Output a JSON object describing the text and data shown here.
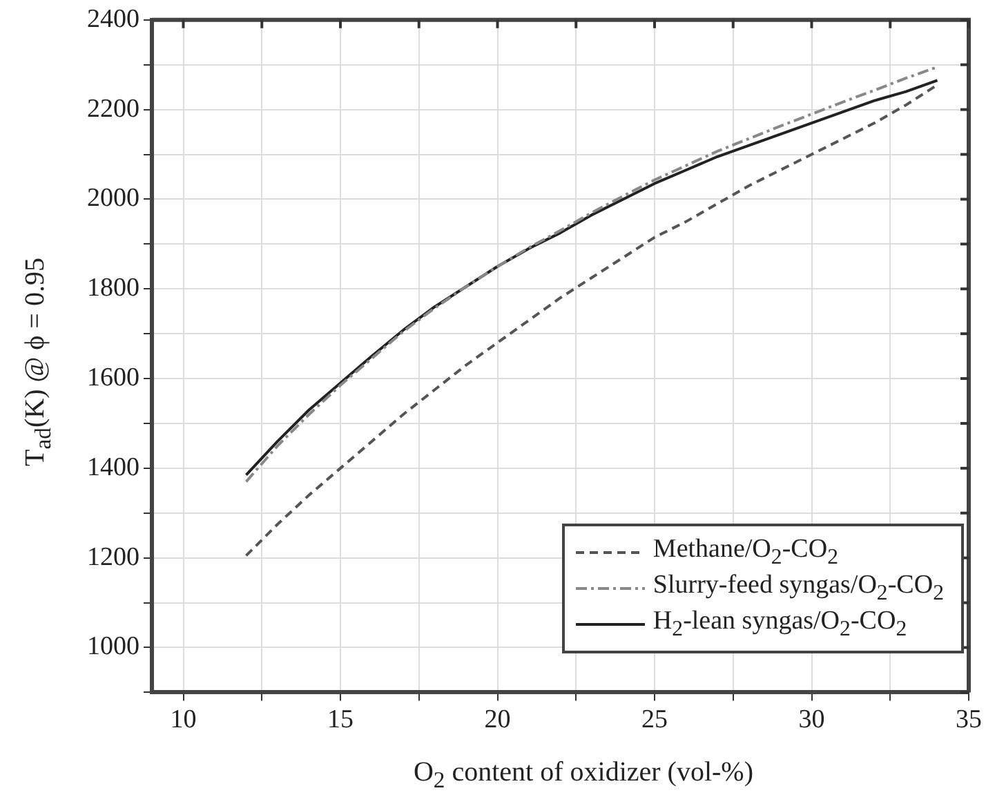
{
  "chart_data": {
    "type": "line",
    "xlabel": "O$_{2}$ content of oxidizer (vol-%)",
    "ylabel": "T$_{ad}$(K) @ ϕ = 0.95",
    "x": [
      12,
      13,
      14,
      15,
      16,
      17,
      18,
      19,
      20,
      21,
      22,
      23,
      24,
      25,
      26,
      27,
      28,
      29,
      30,
      31,
      32,
      33,
      34
    ],
    "series": [
      {
        "name": "Methane/O$_{2}$-CO$_{2}$",
        "color": "#555555",
        "line_style": "dashed",
        "values": [
          1205,
          1275,
          1340,
          1400,
          1460,
          1520,
          1575,
          1630,
          1680,
          1730,
          1780,
          1825,
          1870,
          1915,
          1950,
          1990,
          2030,
          2065,
          2100,
          2135,
          2170,
          2210,
          2255
        ]
      },
      {
        "name": "Slurry-feed syngas/O$_{2}$-CO$_{2}$",
        "color": "#888888",
        "line_style": "dashdot",
        "values": [
          1370,
          1450,
          1520,
          1585,
          1645,
          1705,
          1757,
          1805,
          1850,
          1892,
          1930,
          1970,
          2007,
          2043,
          2075,
          2107,
          2135,
          2163,
          2190,
          2217,
          2243,
          2270,
          2295
        ]
      },
      {
        "name": "H$_{2}$-lean syngas/O$_{2}$-CO$_{2}$",
        "color": "#222222",
        "line_style": "solid",
        "values": [
          1385,
          1460,
          1530,
          1590,
          1650,
          1708,
          1760,
          1805,
          1850,
          1890,
          1925,
          1965,
          2000,
          2035,
          2065,
          2095,
          2120,
          2145,
          2170,
          2195,
          2220,
          2240,
          2265
        ]
      }
    ],
    "xlim": [
      9,
      35
    ],
    "xticks": [
      10,
      {
        "value": 12.5,
        "label": null
      },
      15,
      {
        "value": 17.5,
        "label": null
      },
      20,
      {
        "value": 22.5,
        "label": null
      },
      25,
      {
        "value": 27.5,
        "label": null
      },
      30,
      {
        "value": 32.5,
        "label": null
      },
      35
    ],
    "ylim": [
      900,
      2400
    ],
    "yticks": [
      {
        "value": 900,
        "label": null
      },
      1000,
      {
        "value": 1100,
        "label": null
      },
      1200,
      {
        "value": 1300,
        "label": null
      },
      1400,
      {
        "value": 1500,
        "label": null
      },
      1600,
      {
        "value": 1700,
        "label": null
      },
      1800,
      {
        "value": 1900,
        "label": null
      },
      2000,
      {
        "value": 2100,
        "label": null
      },
      2200,
      {
        "value": 2300,
        "label": null
      },
      2400
    ],
    "grid": true,
    "legend": "bottom right",
    "marker": "none"
  }
}
